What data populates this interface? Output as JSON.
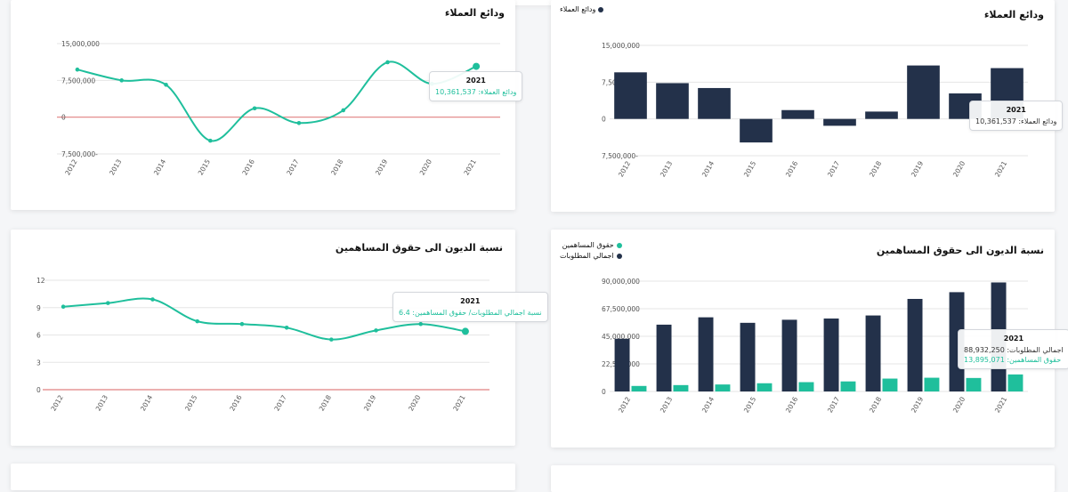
{
  "colors": {
    "teal": "#1fbf9c",
    "navy": "#23314a",
    "zero": "#e08080",
    "grid": "#e6e6e6"
  },
  "cards": {
    "line_deposits": {
      "title": "ودائع العملاء",
      "tooltip": {
        "year": "2021",
        "label": "ودائع العملاء:",
        "value": "10,361,537"
      }
    },
    "bar_deposits": {
      "title": "ودائع العملاء",
      "legend": [
        {
          "label": "ودائع العملاء",
          "color": "#23314a"
        }
      ],
      "tooltip": {
        "year": "2021",
        "label": "ودائع العملاء:",
        "value": "10,361,537"
      }
    },
    "line_ratio": {
      "title": "نسبة الديون الى حقوق المساهمين",
      "tooltip": {
        "year": "2021",
        "label": "نسبة اجمالي المطلوبات/ حقوق المساهمين:",
        "value": "6.4"
      }
    },
    "bar_ratio": {
      "title": "نسبة الديون الى حقوق المساهمين",
      "legend": [
        {
          "label": "حقوق المساهمين",
          "color": "#1fbf9c"
        },
        {
          "label": "اجمالي المطلوبات",
          "color": "#23314a"
        }
      ],
      "tooltip": {
        "year": "2021",
        "rows": [
          {
            "label": "اجمالي المطلوبات:",
            "value": "88,932,250"
          },
          {
            "label": "حقوق المساهمين:",
            "value": "13,895,071"
          }
        ]
      }
    }
  },
  "chart_data": [
    {
      "type": "line",
      "title": "ودائع العملاء",
      "x": [
        "2012",
        "2013",
        "2014",
        "2015",
        "2016",
        "2017",
        "2018",
        "2019",
        "2020",
        "2021"
      ],
      "series": [
        {
          "values": [
            9700000,
            7500000,
            6600000,
            -4800000,
            1800000,
            -1200000,
            1400000,
            11200000,
            6800000,
            10361537
          ]
        }
      ],
      "ylim": [
        -7500000,
        15000000
      ],
      "yticks": [
        "15,000,000",
        "7,500,000",
        "0",
        "7,500,000-"
      ],
      "ytick_values": [
        15000000,
        7500000,
        0,
        -7500000
      ],
      "grid": true
    },
    {
      "type": "bar",
      "title": "ودائع العملاء",
      "categories": [
        "2012",
        "2013",
        "2014",
        "2015",
        "2016",
        "2017",
        "2018",
        "2019",
        "2020",
        "2021"
      ],
      "series": [
        {
          "name": "ودائع العملاء",
          "values": [
            9500000,
            7300000,
            6300000,
            -4800000,
            1800000,
            -1400000,
            1500000,
            10900000,
            5200000,
            10361537
          ]
        }
      ],
      "ylim": [
        -7500000,
        15000000
      ],
      "yticks": [
        "15,000,000",
        "7,500,000",
        "0",
        "7,500,000-"
      ],
      "ytick_values": [
        15000000,
        7500000,
        0,
        -7500000
      ],
      "legend_position": "top-right",
      "grid": true
    },
    {
      "type": "line",
      "title": "نسبة الديون الى حقوق المساهمين",
      "x": [
        "2012",
        "2013",
        "2014",
        "2015",
        "2016",
        "2017",
        "2018",
        "2019",
        "2020",
        "2021"
      ],
      "series": [
        {
          "values": [
            9.1,
            9.5,
            9.9,
            7.5,
            7.2,
            6.8,
            5.5,
            6.5,
            7.2,
            6.4
          ]
        }
      ],
      "ylim": [
        0,
        12
      ],
      "yticks": [
        "12",
        "9",
        "6",
        "3",
        "0"
      ],
      "ytick_values": [
        12,
        9,
        6,
        3,
        0
      ],
      "grid": true
    },
    {
      "type": "bar",
      "title": "نسبة الديون الى حقوق المساهمين",
      "categories": [
        "2012",
        "2013",
        "2014",
        "2015",
        "2016",
        "2017",
        "2018",
        "2019",
        "2020",
        "2021"
      ],
      "series": [
        {
          "name": "اجمالي المطلوبات",
          "values": [
            43000000,
            54500000,
            60500000,
            56000000,
            58500000,
            59500000,
            62000000,
            75500000,
            81000000,
            88932250
          ]
        },
        {
          "name": "حقوق المساهمين",
          "values": [
            4500000,
            5200000,
            5700000,
            6700000,
            7600000,
            8200000,
            10500000,
            11200000,
            11000000,
            13895071
          ]
        }
      ],
      "ylim": [
        0,
        90000000
      ],
      "yticks": [
        "90,000,000",
        "67,500,000",
        "45,000,000",
        "22,500,000",
        "0"
      ],
      "ytick_values": [
        90000000,
        67500000,
        45000000,
        22500000,
        0
      ],
      "legend_position": "top-right",
      "grid": true
    }
  ]
}
